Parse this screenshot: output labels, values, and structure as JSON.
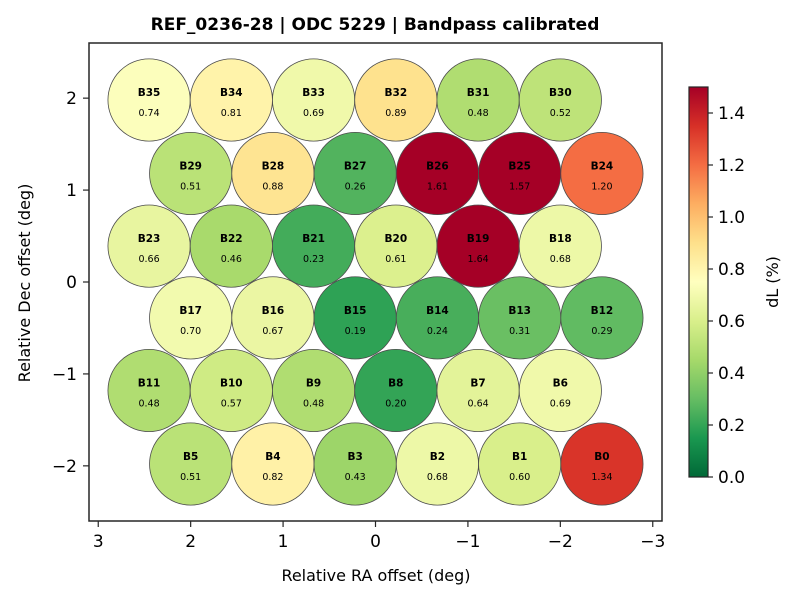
{
  "chart_data": {
    "type": "scatter",
    "subtype": "beam-footprint",
    "title": "REF_0236-28  |  ODC 5229  |  Bandpass calibrated",
    "xlabel": "Relative RA offset (deg)",
    "ylabel": "Relative Dec offset (deg)",
    "xlim": [
      3.1,
      -3.1
    ],
    "ylim": [
      -2.6,
      2.6
    ],
    "xticks": [
      3,
      2,
      1,
      0,
      -1,
      -2,
      -3
    ],
    "xtick_labels": [
      "3",
      "2",
      "1",
      "0",
      "−1",
      "−2",
      "−3"
    ],
    "yticks": [
      2,
      1,
      0,
      -1,
      -2
    ],
    "ytick_labels": [
      "2",
      "1",
      "0",
      "−1",
      "−2"
    ],
    "grid": false,
    "beam_radius_deg": 0.445,
    "colorbar": {
      "label": "dL  (%)",
      "cmap": "RdYlGn_r",
      "range": [
        0.0,
        1.5
      ],
      "ticks": [
        0.0,
        0.2,
        0.4,
        0.6,
        0.8,
        1.0,
        1.2,
        1.4
      ],
      "tick_labels": [
        "0.0",
        "0.2",
        "0.4",
        "0.6",
        "0.8",
        "1.0",
        "1.2",
        "1.4"
      ],
      "placement": "right"
    },
    "beams": [
      {
        "name": "B35",
        "ra": 2.45,
        "dec": 1.98,
        "value": 0.74
      },
      {
        "name": "B34",
        "ra": 1.56,
        "dec": 1.98,
        "value": 0.81
      },
      {
        "name": "B33",
        "ra": 0.67,
        "dec": 1.98,
        "value": 0.69
      },
      {
        "name": "B32",
        "ra": -0.22,
        "dec": 1.98,
        "value": 0.89
      },
      {
        "name": "B31",
        "ra": -1.11,
        "dec": 1.98,
        "value": 0.48
      },
      {
        "name": "B30",
        "ra": -2.0,
        "dec": 1.98,
        "value": 0.52
      },
      {
        "name": "B29",
        "ra": 2.0,
        "dec": 1.18,
        "value": 0.51
      },
      {
        "name": "B28",
        "ra": 1.11,
        "dec": 1.18,
        "value": 0.88
      },
      {
        "name": "B27",
        "ra": 0.22,
        "dec": 1.18,
        "value": 0.26
      },
      {
        "name": "B26",
        "ra": -0.67,
        "dec": 1.18,
        "value": 1.61
      },
      {
        "name": "B25",
        "ra": -1.56,
        "dec": 1.18,
        "value": 1.57
      },
      {
        "name": "B24",
        "ra": -2.45,
        "dec": 1.18,
        "value": 1.2
      },
      {
        "name": "B23",
        "ra": 2.45,
        "dec": 0.39,
        "value": 0.66
      },
      {
        "name": "B22",
        "ra": 1.56,
        "dec": 0.39,
        "value": 0.46
      },
      {
        "name": "B21",
        "ra": 0.67,
        "dec": 0.39,
        "value": 0.23
      },
      {
        "name": "B20",
        "ra": -0.22,
        "dec": 0.39,
        "value": 0.61
      },
      {
        "name": "B19",
        "ra": -1.11,
        "dec": 0.39,
        "value": 1.64
      },
      {
        "name": "B18",
        "ra": -2.0,
        "dec": 0.39,
        "value": 0.68
      },
      {
        "name": "B17",
        "ra": 2.0,
        "dec": -0.39,
        "value": 0.7
      },
      {
        "name": "B16",
        "ra": 1.11,
        "dec": -0.39,
        "value": 0.67
      },
      {
        "name": "B15",
        "ra": 0.22,
        "dec": -0.39,
        "value": 0.19
      },
      {
        "name": "B14",
        "ra": -0.67,
        "dec": -0.39,
        "value": 0.24
      },
      {
        "name": "B13",
        "ra": -1.56,
        "dec": -0.39,
        "value": 0.31
      },
      {
        "name": "B12",
        "ra": -2.45,
        "dec": -0.39,
        "value": 0.29
      },
      {
        "name": "B11",
        "ra": 2.45,
        "dec": -1.18,
        "value": 0.48
      },
      {
        "name": "B10",
        "ra": 1.56,
        "dec": -1.18,
        "value": 0.57
      },
      {
        "name": "B9",
        "ra": 0.67,
        "dec": -1.18,
        "value": 0.48
      },
      {
        "name": "B8",
        "ra": -0.22,
        "dec": -1.18,
        "value": 0.2
      },
      {
        "name": "B7",
        "ra": -1.11,
        "dec": -1.18,
        "value": 0.64
      },
      {
        "name": "B6",
        "ra": -2.0,
        "dec": -1.18,
        "value": 0.69
      },
      {
        "name": "B5",
        "ra": 2.0,
        "dec": -1.98,
        "value": 0.51
      },
      {
        "name": "B4",
        "ra": 1.11,
        "dec": -1.98,
        "value": 0.82
      },
      {
        "name": "B3",
        "ra": 0.22,
        "dec": -1.98,
        "value": 0.43
      },
      {
        "name": "B2",
        "ra": -0.67,
        "dec": -1.98,
        "value": 0.68
      },
      {
        "name": "B1",
        "ra": -1.56,
        "dec": -1.98,
        "value": 0.6
      },
      {
        "name": "B0",
        "ra": -2.45,
        "dec": -1.98,
        "value": 1.34
      }
    ]
  }
}
